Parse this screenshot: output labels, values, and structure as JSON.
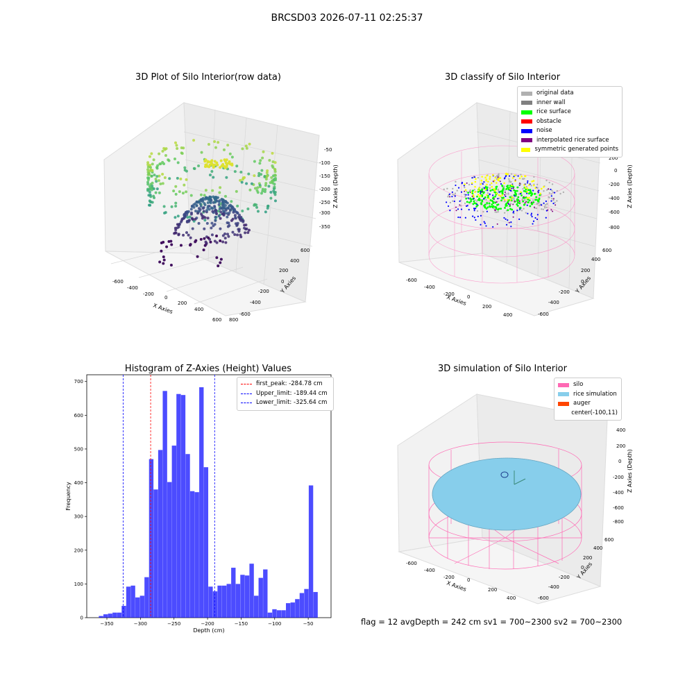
{
  "figure": {
    "title": "BRCSD03 2026-07-11 02:25:37",
    "footer": "flag = 12  avgDepth = 242 cm  sv1 = 700~2300  sv2 = 700~2300"
  },
  "colors": {
    "bars": "#0000ff",
    "peak_line": "#ff0000",
    "limit_line": "#0000ff",
    "silo": "#ff69b4",
    "rice_simulation": "#87ceeb",
    "auger": "#ff4500",
    "inner_wall": "#808080",
    "rice_surface": "#00ff00",
    "obstacle": "#ff0000",
    "noise": "#0000ff",
    "interpolated": "#800080",
    "symmetric": "#ffff00",
    "original": "#b0b0b0"
  },
  "chart_data": [
    {
      "type": "scatter",
      "title": "3D Plot of Silo Interior(row data)",
      "xlabel": "X Axies",
      "ylabel": "Y Axies",
      "zlabel": "Z Axies (Depth)",
      "x_ticks": [
        "-600",
        "-400",
        "-200",
        "0",
        "200",
        "400",
        "600",
        "800"
      ],
      "y_ticks": [
        "-600",
        "-400",
        "-200",
        "0",
        "200",
        "400",
        "600"
      ],
      "z_ticks": [
        "-50",
        "-100",
        "-150",
        "-200",
        "-250",
        "-300",
        "-350"
      ],
      "colormap": "viridis"
    },
    {
      "type": "scatter",
      "title": "3D classify of Silo Interior",
      "xlabel": "X Axies",
      "ylabel": "Y Axies",
      "zlabel": "Z Axies (Depth)",
      "x_ticks": [
        "-600",
        "-400",
        "-200",
        "0",
        "200",
        "400"
      ],
      "y_ticks": [
        "-600",
        "-400",
        "-200",
        "0",
        "200",
        "400",
        "600"
      ],
      "z_ticks": [
        "200",
        "0",
        "-200",
        "-400",
        "-600",
        "-800"
      ],
      "legend": [
        {
          "label": "original data",
          "color": "#b0b0b0"
        },
        {
          "label": "inner wall",
          "color": "#808080"
        },
        {
          "label": "rice surface",
          "color": "#00ff00"
        },
        {
          "label": "obstacle",
          "color": "#ff0000"
        },
        {
          "label": "noise",
          "color": "#0000ff"
        },
        {
          "label": "interpolated rice surface",
          "color": "#800080"
        },
        {
          "label": "symmetric generated points",
          "color": "#ffff00"
        }
      ]
    },
    {
      "type": "bar",
      "title": "Histogram of Z-Axies (Height) Values",
      "xlabel": "Depth (cm)",
      "ylabel": "Frequency",
      "xlim": [
        -380,
        -16
      ],
      "ylim": [
        0,
        720
      ],
      "x_ticks": [
        -350,
        -300,
        -250,
        -200,
        -150,
        -100,
        -50
      ],
      "y_ticks": [
        0,
        100,
        200,
        300,
        400,
        500,
        600,
        700
      ],
      "bin_start": -362,
      "bin_width": 6.8,
      "values": [
        5,
        10,
        12,
        15,
        15,
        35,
        92,
        95,
        60,
        65,
        120,
        470,
        380,
        497,
        672,
        402,
        510,
        663,
        660,
        485,
        375,
        372,
        683,
        446,
        92,
        78,
        95,
        95,
        100,
        148,
        100,
        127,
        125,
        160,
        65,
        118,
        143,
        15,
        25,
        22,
        22,
        43,
        45,
        55,
        73,
        85,
        392,
        76
      ],
      "vlines": [
        {
          "label": "first_peak: -284.78 cm",
          "x": -284.78,
          "color": "#ff0000"
        },
        {
          "label": "Upper_limit: -189.44 cm",
          "x": -189.44,
          "color": "#0000ff"
        },
        {
          "label": "Lower_limit: -325.64 cm",
          "x": -325.64,
          "color": "#0000ff"
        }
      ]
    },
    {
      "type": "scatter",
      "title": "3D simulation of Silo Interior",
      "xlabel": "X Axies",
      "ylabel": "Y Axies",
      "zlabel": "Z Axies (Depth)",
      "x_ticks": [
        "-600",
        "-400",
        "-200",
        "0",
        "200",
        "400"
      ],
      "y_ticks": [
        "-600",
        "-400",
        "-200",
        "0",
        "200",
        "400",
        "600"
      ],
      "z_ticks": [
        "400",
        "200",
        "0",
        "-200",
        "-400",
        "-600",
        "-800"
      ],
      "legend": [
        {
          "label": "silo",
          "color": "#ff69b4"
        },
        {
          "label": "rice simulation",
          "color": "#87ceeb"
        },
        {
          "label": "auger",
          "color": "#ff4500"
        },
        {
          "label": "center(-100,11)",
          "color": ""
        }
      ]
    }
  ]
}
